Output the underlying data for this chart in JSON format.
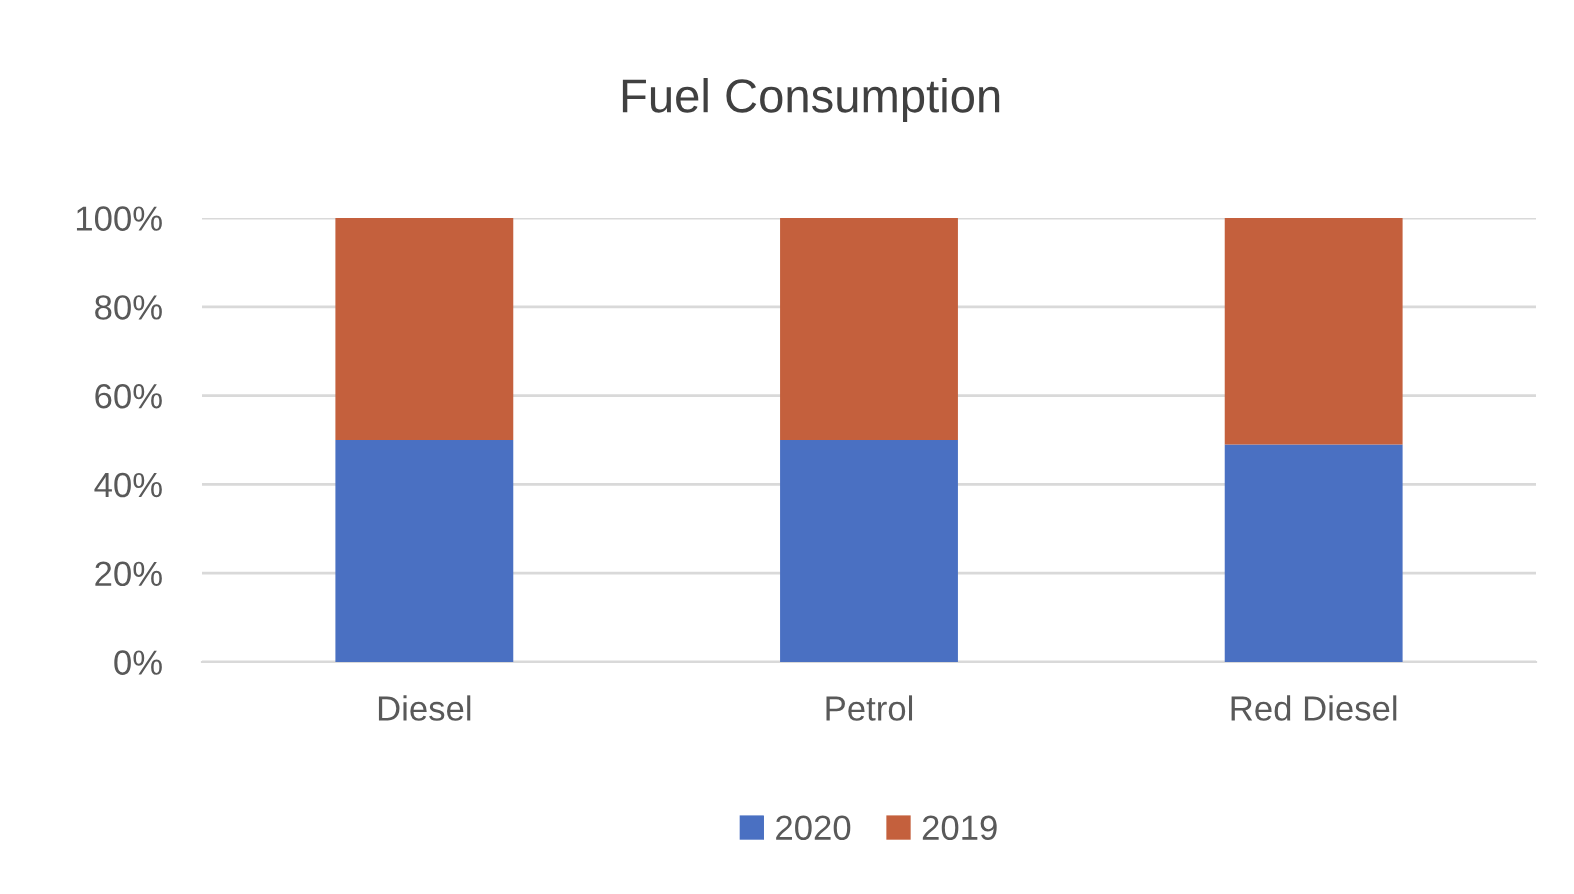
{
  "chart_data": {
    "type": "bar",
    "title": "Fuel Consumption",
    "categories": [
      "Diesel",
      "Petrol",
      "Red Diesel"
    ],
    "series": [
      {
        "name": "2020",
        "color": "#4a70c2",
        "values": [
          50,
          50,
          49
        ]
      },
      {
        "name": "2019",
        "color": "#c4603d",
        "values": [
          50,
          50,
          51
        ]
      }
    ],
    "stacked": true,
    "ylim": [
      0,
      100
    ],
    "yticks": [
      {
        "value": 0,
        "label": "0%"
      },
      {
        "value": 20,
        "label": "20%"
      },
      {
        "value": 40,
        "label": "40%"
      },
      {
        "value": 60,
        "label": "60%"
      },
      {
        "value": 80,
        "label": "80%"
      },
      {
        "value": 100,
        "label": "100%"
      }
    ],
    "grid": "y",
    "legend": "bottom"
  }
}
